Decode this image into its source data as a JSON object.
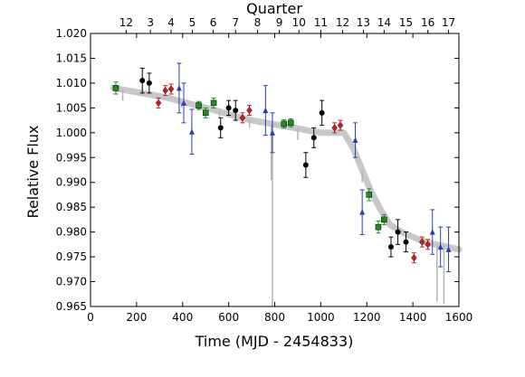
{
  "chart_data": {
    "type": "scatter",
    "xlabel": "Time (MJD - 2454833)",
    "ylabel": "Relative Flux",
    "top_axis_label": "Quarter",
    "xlim": [
      0,
      1600
    ],
    "ylim": [
      0.965,
      1.02
    ],
    "x_ticks": [
      0,
      200,
      400,
      600,
      800,
      1000,
      1200,
      1400,
      1600
    ],
    "y_ticks": [
      0.965,
      0.97,
      0.975,
      0.98,
      0.985,
      0.99,
      0.995,
      1.0,
      1.005,
      1.01,
      1.015,
      1.02
    ],
    "y_tick_labels": [
      "0.965",
      "0.970",
      "0.975",
      "0.980",
      "0.985",
      "0.990",
      "0.995",
      "1.000",
      "1.005",
      "1.010",
      "1.015",
      "1.020"
    ],
    "quarter_ticks": [
      {
        "label": "12",
        "x": 155
      },
      {
        "label": "3",
        "x": 260
      },
      {
        "label": "4",
        "x": 350
      },
      {
        "label": "5",
        "x": 442
      },
      {
        "label": "6",
        "x": 533
      },
      {
        "label": "7",
        "x": 630
      },
      {
        "label": "8",
        "x": 725
      },
      {
        "label": "9",
        "x": 820
      },
      {
        "label": "10",
        "x": 905
      },
      {
        "label": "11",
        "x": 1000
      },
      {
        "label": "12",
        "x": 1095
      },
      {
        "label": "13",
        "x": 1185
      },
      {
        "label": "14",
        "x": 1275
      },
      {
        "label": "15",
        "x": 1370
      },
      {
        "label": "16",
        "x": 1465
      },
      {
        "label": "17",
        "x": 1555
      }
    ],
    "gray_trend": [
      [
        100,
        1.009
      ],
      [
        160,
        1.0085
      ],
      [
        220,
        1.008
      ],
      [
        280,
        1.0075
      ],
      [
        340,
        1.007
      ],
      [
        400,
        1.0062
      ],
      [
        460,
        1.0055
      ],
      [
        520,
        1.0048
      ],
      [
        580,
        1.004
      ],
      [
        640,
        1.0032
      ],
      [
        700,
        1.0025
      ],
      [
        760,
        1.002
      ],
      [
        820,
        1.0015
      ],
      [
        880,
        1.001
      ],
      [
        940,
        1.0005
      ],
      [
        1000,
        1.0
      ],
      [
        1060,
        1.0
      ],
      [
        1100,
        1.0
      ],
      [
        1140,
        0.997
      ],
      [
        1180,
        0.9925
      ],
      [
        1220,
        0.988
      ],
      [
        1260,
        0.9845
      ],
      [
        1300,
        0.9815
      ],
      [
        1350,
        0.98
      ],
      [
        1400,
        0.979
      ],
      [
        1450,
        0.978
      ],
      [
        1500,
        0.9775
      ],
      [
        1550,
        0.977
      ],
      [
        1600,
        0.9765
      ]
    ],
    "gray_dips": [
      {
        "x": 140,
        "y": 1.0065
      },
      {
        "x": 395,
        "y": 1.005
      },
      {
        "x": 470,
        "y": 1.0045
      },
      {
        "x": 560,
        "y": 1.003
      },
      {
        "x": 690,
        "y": 1.001
      },
      {
        "x": 785,
        "y": 0.9905
      },
      {
        "x": 790,
        "y": 0.965
      },
      {
        "x": 900,
        "y": 0.9985
      },
      {
        "x": 1180,
        "y": 0.99
      },
      {
        "x": 1505,
        "y": 0.966
      },
      {
        "x": 1535,
        "y": 0.9655
      }
    ],
    "series": [
      {
        "color": "#228B22",
        "marker": "square",
        "points": [
          {
            "x": 110,
            "y": 1.009,
            "err": 0.0012
          },
          {
            "x": 470,
            "y": 1.0055,
            "err": 0.0008
          },
          {
            "x": 500,
            "y": 1.004,
            "err": 0.001
          },
          {
            "x": 535,
            "y": 1.006,
            "err": 0.001
          },
          {
            "x": 840,
            "y": 1.0018,
            "err": 0.0008
          },
          {
            "x": 870,
            "y": 1.002,
            "err": 0.0008
          },
          {
            "x": 1210,
            "y": 0.9875,
            "err": 0.0012
          },
          {
            "x": 1250,
            "y": 0.981,
            "err": 0.0012
          },
          {
            "x": 1275,
            "y": 0.9825,
            "err": 0.001
          }
        ]
      },
      {
        "color": "#000000",
        "marker": "circle",
        "points": [
          {
            "x": 225,
            "y": 1.0105,
            "err": 0.0025
          },
          {
            "x": 255,
            "y": 1.01,
            "err": 0.002
          },
          {
            "x": 565,
            "y": 1.001,
            "err": 0.002
          },
          {
            "x": 600,
            "y": 1.005,
            "err": 0.0015
          },
          {
            "x": 630,
            "y": 1.0045,
            "err": 0.002
          },
          {
            "x": 935,
            "y": 0.9935,
            "err": 0.0025
          },
          {
            "x": 970,
            "y": 0.999,
            "err": 0.002
          },
          {
            "x": 1005,
            "y": 1.004,
            "err": 0.0025
          },
          {
            "x": 1305,
            "y": 0.977,
            "err": 0.002
          },
          {
            "x": 1335,
            "y": 0.98,
            "err": 0.0025
          },
          {
            "x": 1370,
            "y": 0.978,
            "err": 0.002
          }
        ]
      },
      {
        "color": "#C81E1E",
        "marker": "diamond",
        "points": [
          {
            "x": 295,
            "y": 1.006,
            "err": 0.001
          },
          {
            "x": 325,
            "y": 1.0085,
            "err": 0.001
          },
          {
            "x": 350,
            "y": 1.0088,
            "err": 0.001
          },
          {
            "x": 660,
            "y": 1.003,
            "err": 0.001
          },
          {
            "x": 690,
            "y": 1.0045,
            "err": 0.001
          },
          {
            "x": 1060,
            "y": 1.001,
            "err": 0.001
          },
          {
            "x": 1085,
            "y": 1.0015,
            "err": 0.001
          },
          {
            "x": 1405,
            "y": 0.9748,
            "err": 0.001
          },
          {
            "x": 1440,
            "y": 0.978,
            "err": 0.001
          },
          {
            "x": 1465,
            "y": 0.9775,
            "err": 0.001
          }
        ]
      },
      {
        "color": "#2B3FB5",
        "marker": "triangle",
        "points": [
          {
            "x": 385,
            "y": 1.009,
            "err": 0.005
          },
          {
            "x": 405,
            "y": 1.006,
            "err": 0.004
          },
          {
            "x": 440,
            "y": 1.0002,
            "err": 0.0045
          },
          {
            "x": 760,
            "y": 1.0045,
            "err": 0.005
          },
          {
            "x": 790,
            "y": 1.0,
            "err": 0.004
          },
          {
            "x": 1150,
            "y": 0.9985,
            "err": 0.0035
          },
          {
            "x": 1180,
            "y": 0.984,
            "err": 0.0045
          },
          {
            "x": 1485,
            "y": 0.98,
            "err": 0.0045
          },
          {
            "x": 1520,
            "y": 0.977,
            "err": 0.004
          },
          {
            "x": 1555,
            "y": 0.9765,
            "err": 0.0045
          }
        ]
      }
    ]
  }
}
